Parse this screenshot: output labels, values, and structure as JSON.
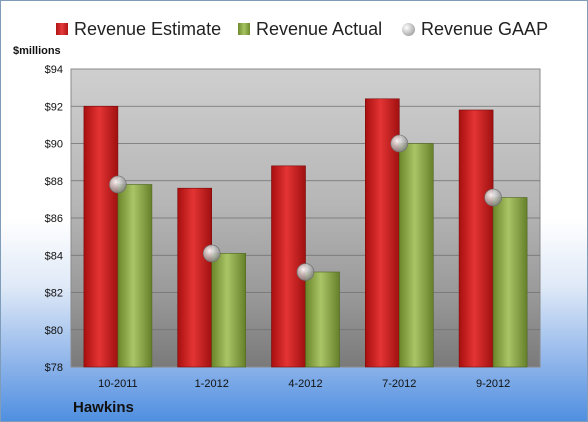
{
  "company": "Hawkins",
  "chart_data": {
    "type": "bar",
    "ylabel": "$millions",
    "ylim": [
      78,
      94
    ],
    "yticks": [
      "$78",
      "$80",
      "$82",
      "$84",
      "$86",
      "$88",
      "$90",
      "$92",
      "$94"
    ],
    "categories": [
      "10-2011",
      "1-2012",
      "4-2012",
      "7-2012",
      "9-2012"
    ],
    "grid": true,
    "legend_position": "top",
    "series": [
      {
        "name": "Revenue Estimate",
        "type": "bar",
        "color": "#d42020",
        "values": [
          92.0,
          87.6,
          88.8,
          92.4,
          91.8
        ]
      },
      {
        "name": "Revenue Actual",
        "type": "bar",
        "color": "#8eac4c",
        "values": [
          87.8,
          84.1,
          83.1,
          90.0,
          87.1
        ]
      },
      {
        "name": "Revenue GAAP",
        "type": "marker",
        "color": "#b8b8b8",
        "values": [
          87.8,
          84.1,
          83.1,
          90.0,
          87.1
        ]
      }
    ]
  }
}
